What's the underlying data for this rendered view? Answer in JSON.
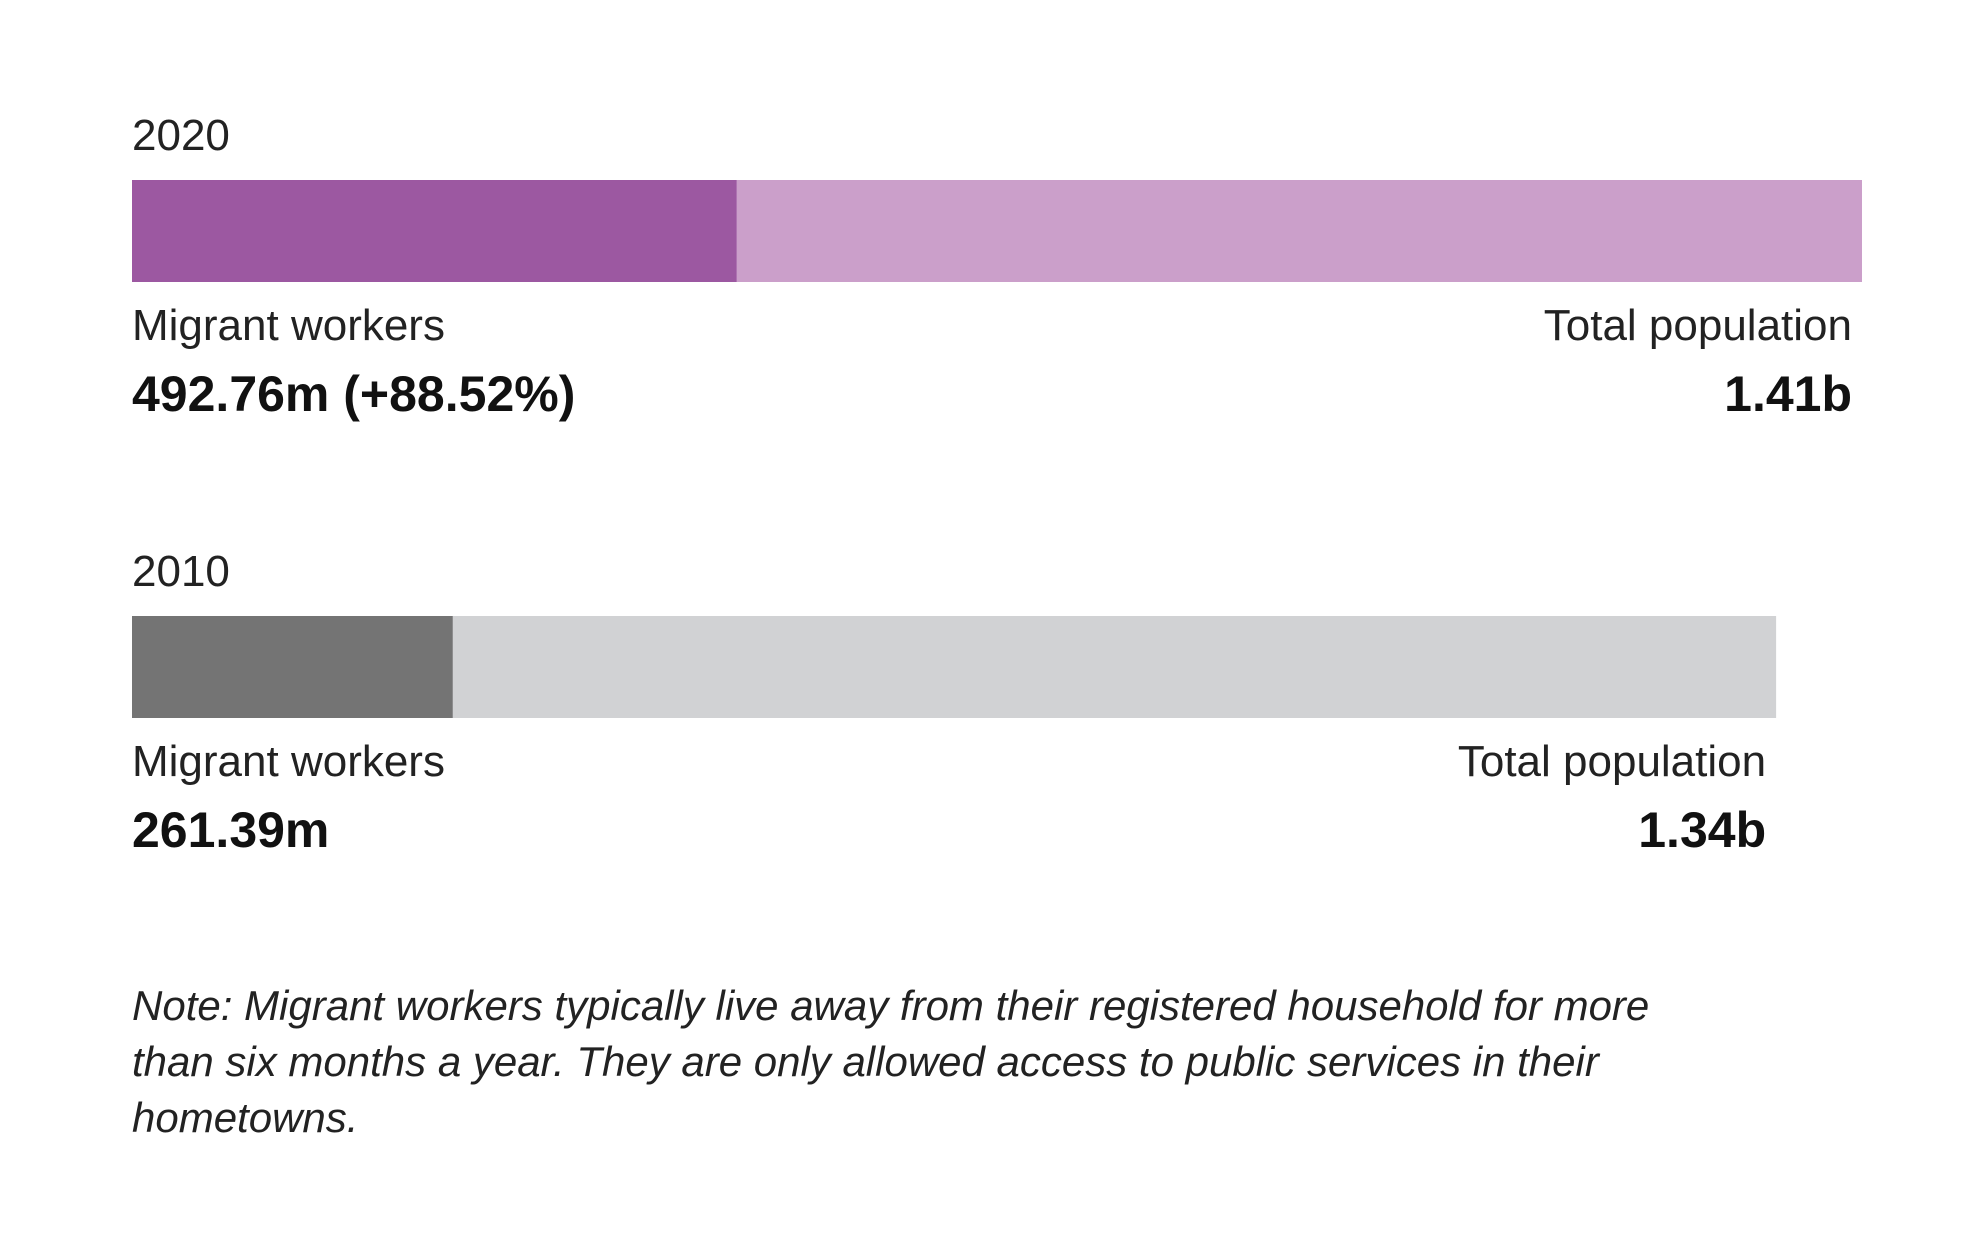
{
  "chart_data": {
    "type": "bar",
    "orientation": "horizontal",
    "stacked": false,
    "value_unit": "people",
    "xlim": [
      0,
      1410000000
    ],
    "rows": [
      {
        "year": "2020",
        "migrant_label": "Migrant workers",
        "migrant_value": 492760000,
        "migrant_text": "492.76m (+88.52%)",
        "total_label": "Total population",
        "total_value": 1410000000,
        "total_text": "1.41b",
        "migrant_color": "#9c58a1",
        "total_color": "#cb9fca"
      },
      {
        "year": "2010",
        "migrant_label": "Migrant workers",
        "migrant_value": 261390000,
        "migrant_text": "261.39m",
        "total_label": "Total population",
        "total_value": 1340000000,
        "total_text": "1.34b",
        "migrant_color": "#747474",
        "total_color": "#d1d2d4"
      }
    ],
    "grid": false,
    "legend": "none"
  },
  "note": "Note: Migrant workers typically live away from their registered household for more than six months a year. They are only allowed access to public services in their hometowns."
}
